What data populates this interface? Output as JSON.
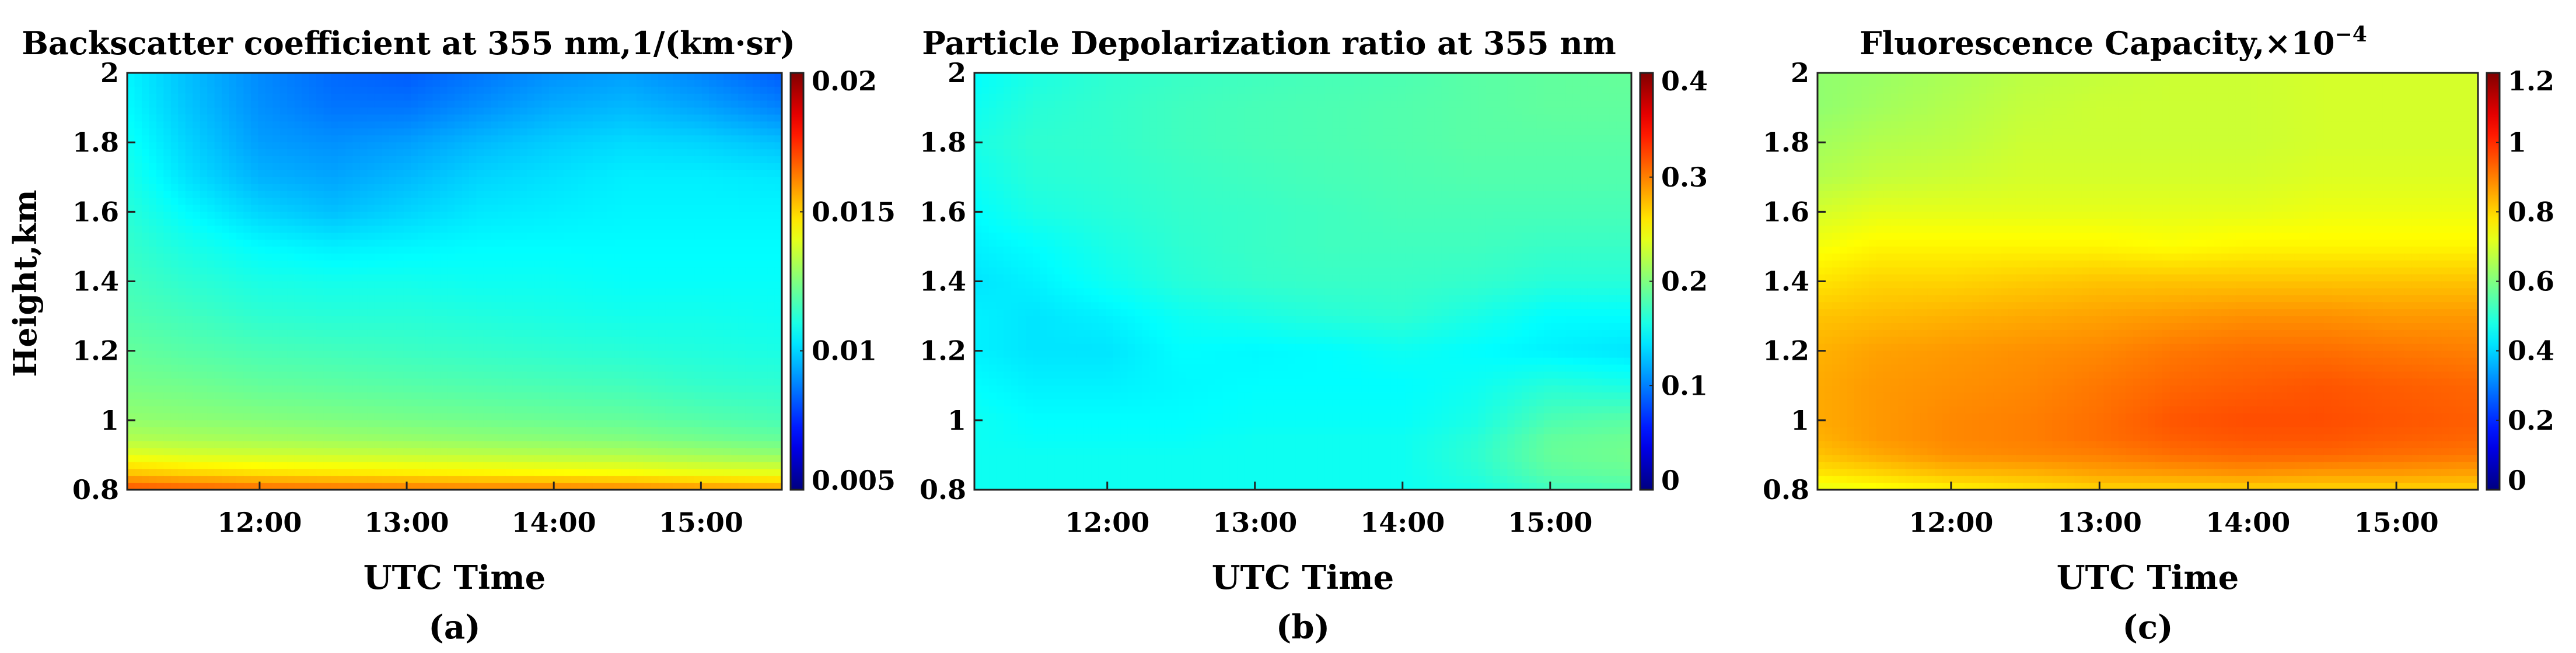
{
  "figure": {
    "colormap": "jet",
    "background": "#ffffff"
  },
  "chart_data": [
    {
      "type": "heatmap",
      "panel": "(a)",
      "title": "Backscatter coefficient at 355 nm,1/(km·sr)",
      "xlabel": "UTC Time",
      "ylabel": "Height,km",
      "x_range_hours": [
        11.1,
        15.55
      ],
      "x_ticks": [
        "12:00",
        "13:00",
        "14:00",
        "15:00"
      ],
      "x_tick_hours": [
        12,
        13,
        14,
        15
      ],
      "ylim": [
        0.8,
        2.0
      ],
      "y_ticks": [
        "0.8",
        "1",
        "1.2",
        "1.4",
        "1.6",
        "1.8",
        "2"
      ],
      "y_tick_values": [
        0.8,
        1.0,
        1.2,
        1.4,
        1.6,
        1.8,
        2.0
      ],
      "colorbar_range": [
        0.005,
        0.02
      ],
      "colorbar_ticks": [
        "0.005",
        "0.01",
        "0.015",
        "0.02"
      ],
      "colorbar_tick_values": [
        0.005,
        0.01,
        0.015,
        0.02
      ],
      "grid_times": [
        11.1,
        11.5,
        12.0,
        12.5,
        13.0,
        13.5,
        14.0,
        14.5,
        15.0,
        15.55
      ],
      "grid_heights": [
        0.8,
        0.85,
        0.9,
        0.95,
        1.0,
        1.1,
        1.2,
        1.3,
        1.4,
        1.5,
        1.6,
        1.7,
        1.8,
        1.9,
        2.0
      ],
      "values": [
        [
          0.017,
          0.0168,
          0.0166,
          0.0165,
          0.0164,
          0.0163,
          0.0163,
          0.0162,
          0.016,
          0.0158
        ],
        [
          0.0152,
          0.015,
          0.0148,
          0.0147,
          0.0146,
          0.0145,
          0.0144,
          0.0143,
          0.0141,
          0.014
        ],
        [
          0.014,
          0.0138,
          0.0137,
          0.0136,
          0.0135,
          0.0134,
          0.0133,
          0.0132,
          0.013,
          0.0128
        ],
        [
          0.0132,
          0.0131,
          0.013,
          0.0129,
          0.0128,
          0.0127,
          0.0126,
          0.0125,
          0.0123,
          0.0121
        ],
        [
          0.0128,
          0.0127,
          0.0126,
          0.0125,
          0.0124,
          0.0123,
          0.0122,
          0.0121,
          0.0119,
          0.0117
        ],
        [
          0.0124,
          0.0123,
          0.0121,
          0.012,
          0.0119,
          0.0118,
          0.0117,
          0.0116,
          0.0114,
          0.0113
        ],
        [
          0.0121,
          0.0119,
          0.0117,
          0.0116,
          0.0115,
          0.0114,
          0.0113,
          0.0112,
          0.0111,
          0.011
        ],
        [
          0.0118,
          0.0116,
          0.0113,
          0.0112,
          0.0112,
          0.0111,
          0.011,
          0.0109,
          0.0109,
          0.0108
        ],
        [
          0.0116,
          0.0113,
          0.011,
          0.0109,
          0.0109,
          0.0108,
          0.0108,
          0.0107,
          0.0107,
          0.0107
        ],
        [
          0.0114,
          0.011,
          0.0106,
          0.0104,
          0.0105,
          0.0106,
          0.0106,
          0.0106,
          0.0106,
          0.0106
        ],
        [
          0.0112,
          0.0106,
          0.01,
          0.0097,
          0.01,
          0.0103,
          0.0104,
          0.0105,
          0.0105,
          0.0105
        ],
        [
          0.011,
          0.0102,
          0.0095,
          0.0093,
          0.0096,
          0.01,
          0.0102,
          0.0104,
          0.0104,
          0.0103
        ],
        [
          0.0108,
          0.01,
          0.0092,
          0.009,
          0.0092,
          0.0096,
          0.0099,
          0.0101,
          0.01,
          0.0097
        ],
        [
          0.0106,
          0.0098,
          0.009,
          0.0086,
          0.0086,
          0.009,
          0.0094,
          0.0096,
          0.0093,
          0.0088
        ],
        [
          0.0105,
          0.0097,
          0.0089,
          0.0084,
          0.0082,
          0.0086,
          0.009,
          0.0092,
          0.0088,
          0.0082
        ]
      ]
    },
    {
      "type": "heatmap",
      "panel": "(b)",
      "title": "Particle Depolarization ratio at 355 nm",
      "xlabel": "UTC Time",
      "ylabel": "",
      "x_range_hours": [
        11.1,
        15.55
      ],
      "x_ticks": [
        "12:00",
        "13:00",
        "14:00",
        "15:00"
      ],
      "x_tick_hours": [
        12,
        13,
        14,
        15
      ],
      "ylim": [
        0.8,
        2.0
      ],
      "y_ticks": [
        "0.8",
        "1",
        "1.2",
        "1.4",
        "1.6",
        "1.8",
        "2"
      ],
      "y_tick_values": [
        0.8,
        1.0,
        1.2,
        1.4,
        1.6,
        1.8,
        2.0
      ],
      "colorbar_range": [
        0,
        0.4
      ],
      "colorbar_ticks": [
        "0",
        "0.1",
        "0.2",
        "0.3",
        "0.4"
      ],
      "colorbar_tick_values": [
        0,
        0.1,
        0.2,
        0.3,
        0.4
      ],
      "grid_times": [
        11.1,
        11.5,
        12.0,
        12.5,
        13.0,
        13.5,
        14.0,
        14.5,
        15.0,
        15.55
      ],
      "grid_heights": [
        0.8,
        0.85,
        0.9,
        0.95,
        1.0,
        1.1,
        1.2,
        1.3,
        1.4,
        1.5,
        1.6,
        1.7,
        1.8,
        1.9,
        2.0
      ],
      "values": [
        [
          0.155,
          0.155,
          0.155,
          0.155,
          0.155,
          0.155,
          0.155,
          0.16,
          0.175,
          0.18
        ],
        [
          0.155,
          0.155,
          0.155,
          0.155,
          0.155,
          0.155,
          0.155,
          0.165,
          0.185,
          0.19
        ],
        [
          0.155,
          0.155,
          0.155,
          0.155,
          0.155,
          0.155,
          0.155,
          0.168,
          0.19,
          0.195
        ],
        [
          0.155,
          0.152,
          0.152,
          0.152,
          0.155,
          0.155,
          0.155,
          0.165,
          0.188,
          0.192
        ],
        [
          0.155,
          0.15,
          0.15,
          0.15,
          0.152,
          0.152,
          0.152,
          0.16,
          0.18,
          0.185
        ],
        [
          0.15,
          0.145,
          0.145,
          0.148,
          0.15,
          0.15,
          0.15,
          0.155,
          0.165,
          0.16
        ],
        [
          0.145,
          0.14,
          0.14,
          0.15,
          0.148,
          0.15,
          0.155,
          0.15,
          0.145,
          0.14
        ],
        [
          0.145,
          0.14,
          0.145,
          0.155,
          0.16,
          0.165,
          0.168,
          0.16,
          0.15,
          0.15
        ],
        [
          0.14,
          0.145,
          0.155,
          0.165,
          0.17,
          0.172,
          0.172,
          0.17,
          0.165,
          0.165
        ],
        [
          0.145,
          0.15,
          0.16,
          0.168,
          0.172,
          0.175,
          0.175,
          0.175,
          0.172,
          0.172
        ],
        [
          0.15,
          0.16,
          0.165,
          0.17,
          0.172,
          0.175,
          0.178,
          0.178,
          0.178,
          0.178
        ],
        [
          0.155,
          0.165,
          0.168,
          0.172,
          0.175,
          0.178,
          0.18,
          0.182,
          0.182,
          0.182
        ],
        [
          0.16,
          0.168,
          0.17,
          0.175,
          0.178,
          0.18,
          0.182,
          0.185,
          0.185,
          0.185
        ],
        [
          0.155,
          0.165,
          0.17,
          0.175,
          0.178,
          0.18,
          0.182,
          0.185,
          0.188,
          0.188
        ],
        [
          0.15,
          0.16,
          0.168,
          0.172,
          0.175,
          0.178,
          0.18,
          0.185,
          0.188,
          0.19
        ]
      ]
    },
    {
      "type": "heatmap",
      "panel": "(c)",
      "title": "Fluorescence Capacity,×10",
      "title_superscript": "−4",
      "xlabel": "UTC Time",
      "ylabel": "",
      "x_range_hours": [
        11.1,
        15.55
      ],
      "x_ticks": [
        "12:00",
        "13:00",
        "14:00",
        "15:00"
      ],
      "x_tick_hours": [
        12,
        13,
        14,
        15
      ],
      "ylim": [
        0.8,
        2.0
      ],
      "y_ticks": [
        "0.8",
        "1",
        "1.2",
        "1.4",
        "1.6",
        "1.8",
        "2"
      ],
      "y_tick_values": [
        0.8,
        1.0,
        1.2,
        1.4,
        1.6,
        1.8,
        2.0
      ],
      "colorbar_range": [
        0,
        1.2
      ],
      "colorbar_ticks": [
        "0",
        "0.2",
        "0.4",
        "0.6",
        "0.8",
        "1",
        "1.2"
      ],
      "colorbar_tick_values": [
        0,
        0.2,
        0.4,
        0.6,
        0.8,
        1.0,
        1.2
      ],
      "grid_times": [
        11.1,
        11.5,
        12.0,
        12.5,
        13.0,
        13.5,
        14.0,
        14.5,
        15.0,
        15.55
      ],
      "grid_heights": [
        0.8,
        0.85,
        0.9,
        0.95,
        1.0,
        1.1,
        1.2,
        1.3,
        1.4,
        1.5,
        1.6,
        1.7,
        1.8,
        1.9,
        2.0
      ],
      "values": [
        [
          0.72,
          0.74,
          0.76,
          0.78,
          0.8,
          0.8,
          0.8,
          0.8,
          0.8,
          0.8
        ],
        [
          0.78,
          0.8,
          0.83,
          0.84,
          0.86,
          0.87,
          0.88,
          0.87,
          0.87,
          0.86
        ],
        [
          0.82,
          0.85,
          0.88,
          0.89,
          0.9,
          0.92,
          0.93,
          0.93,
          0.92,
          0.91
        ],
        [
          0.84,
          0.87,
          0.89,
          0.9,
          0.92,
          0.94,
          0.95,
          0.95,
          0.94,
          0.93
        ],
        [
          0.85,
          0.87,
          0.89,
          0.9,
          0.92,
          0.95,
          0.96,
          0.96,
          0.95,
          0.94
        ],
        [
          0.85,
          0.87,
          0.88,
          0.89,
          0.91,
          0.93,
          0.94,
          0.95,
          0.94,
          0.93
        ],
        [
          0.84,
          0.86,
          0.87,
          0.88,
          0.89,
          0.91,
          0.92,
          0.92,
          0.91,
          0.9
        ],
        [
          0.82,
          0.83,
          0.84,
          0.85,
          0.86,
          0.87,
          0.88,
          0.88,
          0.87,
          0.87
        ],
        [
          0.78,
          0.8,
          0.8,
          0.81,
          0.82,
          0.82,
          0.82,
          0.82,
          0.82,
          0.82
        ],
        [
          0.74,
          0.76,
          0.76,
          0.76,
          0.76,
          0.75,
          0.76,
          0.76,
          0.76,
          0.76
        ],
        [
          0.7,
          0.72,
          0.72,
          0.72,
          0.72,
          0.72,
          0.72,
          0.73,
          0.73,
          0.73
        ],
        [
          0.66,
          0.68,
          0.69,
          0.7,
          0.7,
          0.7,
          0.7,
          0.71,
          0.71,
          0.71
        ],
        [
          0.64,
          0.66,
          0.67,
          0.69,
          0.69,
          0.69,
          0.69,
          0.7,
          0.7,
          0.7
        ],
        [
          0.62,
          0.64,
          0.66,
          0.68,
          0.69,
          0.69,
          0.69,
          0.7,
          0.7,
          0.7
        ],
        [
          0.62,
          0.63,
          0.65,
          0.67,
          0.68,
          0.69,
          0.69,
          0.7,
          0.7,
          0.7
        ]
      ]
    }
  ]
}
